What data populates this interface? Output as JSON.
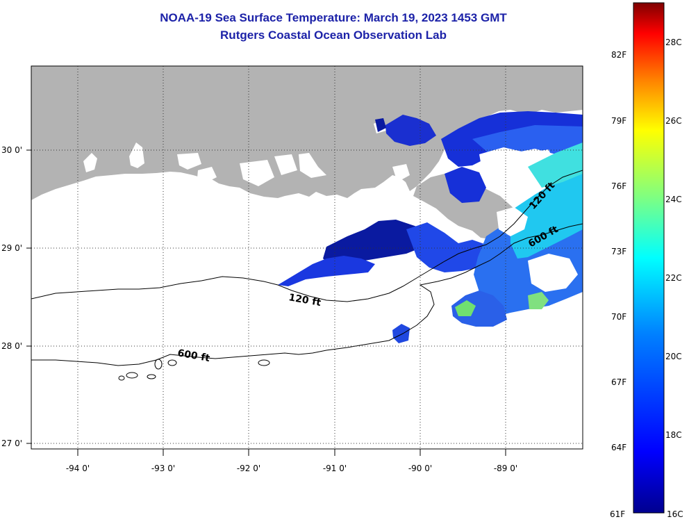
{
  "title_line1": "NOAA-19 Sea Surface Temperature:  March 19, 2023 1453 GMT",
  "title_line2": "Rutgers Coastal Ocean Observation Lab",
  "map": {
    "lon_labels": [
      "-94 0'",
      "-93 0'",
      "-92 0'",
      "-91 0'",
      "-90 0'",
      "-89 0'"
    ],
    "lat_labels": [
      "30 0'",
      "29 0'",
      "28 0'",
      "27 0'"
    ],
    "land_color": "#b3b3b3",
    "cloud_color": "#ffffff",
    "contours": [
      {
        "label": "120 ft"
      },
      {
        "label": "600 ft"
      },
      {
        "label": "120 ft"
      },
      {
        "label": "600 ft"
      }
    ]
  },
  "colorbar": {
    "fahrenheit": [
      "82F",
      "79F",
      "76F",
      "73F",
      "70F",
      "67F",
      "64F",
      "61F"
    ],
    "celsius": [
      "28C",
      "26C",
      "24C",
      "22C",
      "20C",
      "18C",
      "16C"
    ],
    "colors": [
      "#7f0000",
      "#ff0000",
      "#ff8000",
      "#ffff00",
      "#80ff80",
      "#00ffff",
      "#0080ff",
      "#0000ff",
      "#00008f"
    ]
  }
}
